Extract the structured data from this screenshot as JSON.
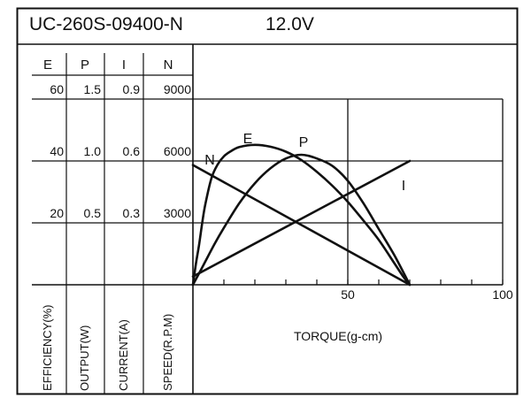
{
  "chart_data": {
    "type": "line",
    "title": "UC-260S-09400-N",
    "subtitle": "12.0V",
    "xlabel": "TORQUE(g-cm)",
    "xlim": [
      0,
      100
    ],
    "x_ticks": [
      "50",
      "100"
    ],
    "grid": true,
    "axes": [
      {
        "key": "E",
        "header": "E",
        "label": "EFFICIENCY(%)",
        "max": 60,
        "ticks": [
          "20",
          "40",
          "60"
        ]
      },
      {
        "key": "P",
        "header": "P",
        "label": "OUTPUT(W)",
        "max": 1.5,
        "ticks": [
          "0.5",
          "1.0",
          "1.5"
        ]
      },
      {
        "key": "I",
        "header": "I",
        "label": "CURRENT(A)",
        "max": 0.9,
        "ticks": [
          "0.3",
          "0.6",
          "0.9"
        ]
      },
      {
        "key": "N",
        "header": "N",
        "label": "SPEED(R.P.M)",
        "max": 9000,
        "ticks": [
          "3000",
          "6000",
          "9000"
        ]
      }
    ],
    "series": [
      {
        "name": "E",
        "axis": "E",
        "x": [
          0,
          1,
          2,
          3,
          4,
          6,
          8,
          10,
          12,
          15,
          20,
          25,
          30,
          35,
          40,
          45,
          50,
          55,
          60,
          65,
          68,
          70
        ],
        "y": [
          0,
          7,
          13,
          20,
          26,
          34.5,
          38.9,
          41.5,
          43,
          44.5,
          45.2,
          44.6,
          43,
          40.3,
          36.5,
          32,
          26.8,
          20.8,
          14.5,
          7,
          2.5,
          0
        ]
      },
      {
        "name": "P",
        "axis": "P",
        "x": [
          0,
          3,
          7,
          10,
          15,
          20,
          25,
          30,
          35,
          40,
          45,
          50,
          55,
          60,
          65,
          70
        ],
        "y": [
          0,
          0.14,
          0.33,
          0.46,
          0.66,
          0.82,
          0.94,
          1.02,
          1.05,
          1.02,
          0.96,
          0.84,
          0.66,
          0.45,
          0.24,
          0
        ]
      },
      {
        "name": "I",
        "axis": "I",
        "x": [
          0,
          70
        ],
        "y": [
          0.04,
          0.6
        ]
      },
      {
        "name": "N",
        "axis": "N",
        "x": [
          0,
          70
        ],
        "y": [
          5800,
          0
        ]
      }
    ]
  }
}
